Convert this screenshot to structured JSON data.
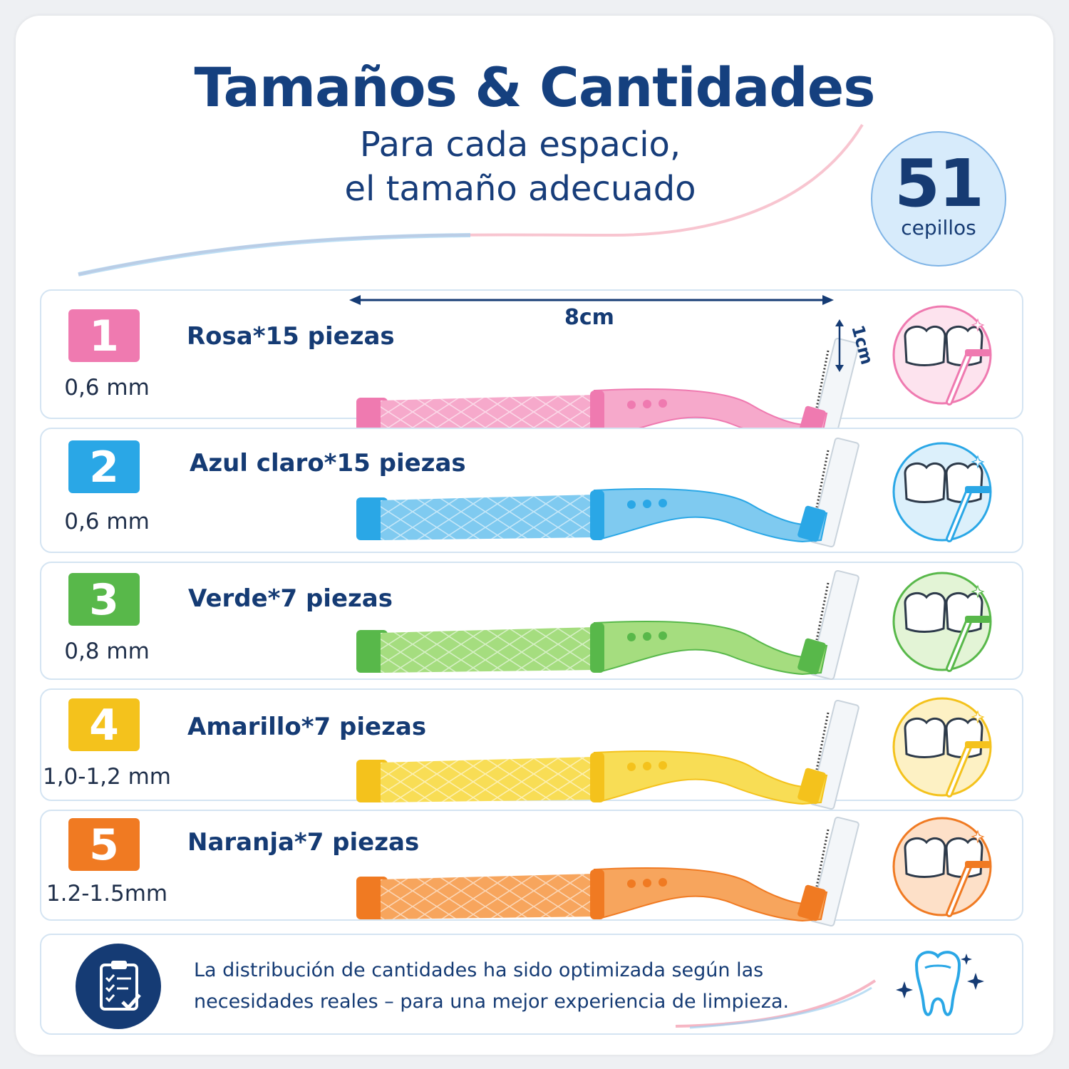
{
  "header": {
    "title": "Tamaños & Cantidades",
    "subtitle_line1": "Para cada espacio,",
    "subtitle_line2": "el tamaño adecuado"
  },
  "badge": {
    "count": "51",
    "label": "cepillos"
  },
  "measurements": {
    "length": "8cm",
    "height": "1cm"
  },
  "rows": [
    {
      "number": "1",
      "size": "0,6 mm",
      "name": "Rosa*15 piezas",
      "color": "#ef7ab0",
      "light": "#f6a9cb",
      "pale": "#fde3ee"
    },
    {
      "number": "2",
      "size": "0,6 mm",
      "name": "Azul claro*15 piezas",
      "color": "#2aa7e6",
      "light": "#7fcaf0",
      "pale": "#dcf0fb"
    },
    {
      "number": "3",
      "size": "0,8 mm",
      "name": "Verde*7 piezas",
      "color": "#58b84a",
      "light": "#a5dd7f",
      "pale": "#e3f4d6"
    },
    {
      "number": "4",
      "size": "1,0-1,2 mm",
      "name": "Amarillo*7 piezas",
      "color": "#f4c21c",
      "light": "#f8dd55",
      "pale": "#fdf1c4"
    },
    {
      "number": "5",
      "size": "1.2-1.5mm",
      "name": "Naranja*7 piezas",
      "color": "#f07a22",
      "light": "#f7a55d",
      "pale": "#fde0c8"
    }
  ],
  "footer": {
    "note_line1": "La distribución de cantidades ha sido optimizada según las",
    "note_line2": "necesidades reales – para una mejor experiencia de limpieza."
  },
  "icons": {
    "clipboard": "clipboard-check-icon",
    "tooth": "sparkling-tooth-icon",
    "brush": "interdental-brush-icon",
    "teeth": "teeth-cleaning-icon"
  }
}
